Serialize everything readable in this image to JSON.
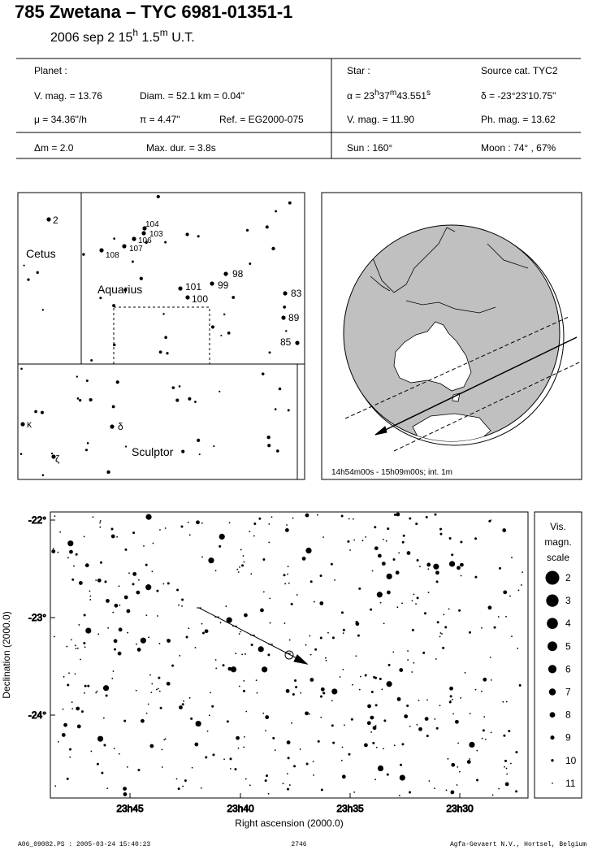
{
  "header": {
    "title": "785 Zwetana  –  TYC 6981-01351-1",
    "date": "2006 sep  2  15",
    "date_h": "h",
    "date_min": " 1.5",
    "date_m": "m",
    "date_ut": " U.T."
  },
  "planet": {
    "label": "Planet :",
    "vmag": "V. mag. = 13.76",
    "diam": "Diam. = 52.1 km = 0.04\"",
    "mu": "μ =  34.36\"/h",
    "pi": "π =  4.47\"",
    "ref": "Ref. = EG2000-075"
  },
  "star": {
    "label": "Star :",
    "source": "Source cat.  TYC2",
    "alpha": "α = 23",
    "alpha_h": "h",
    "alpha_min": "37",
    "alpha_m": "m",
    "alpha_sec": "43.551",
    "alpha_s": "s",
    "delta": "δ = -23°23'10.75\"",
    "vmag": "V. mag. = 11.90",
    "phmag": "Ph. mag. = 13.62"
  },
  "circumstances": {
    "dm": "Δm = 2.0",
    "maxdur": "Max. dur. = 3.8s",
    "sun": "Sun : 160°",
    "moon": "Moon :  74° , 67%"
  },
  "finder": {
    "constellations": [
      "Cetus",
      "Aquarius",
      "Sculptor"
    ],
    "labels": [
      "2",
      "104",
      "103",
      "106",
      "107",
      "108",
      "98",
      "101",
      "99",
      "100",
      "83",
      "89",
      "85",
      "κ",
      "δ",
      "ζ"
    ]
  },
  "globe": {
    "caption": "14h54m00s - 15h09m00s; int.  1m"
  },
  "chart": {
    "yticks": [
      "-22°",
      "-23°",
      "-24°"
    ],
    "xticks": [
      "23h45",
      "23h40",
      "23h35",
      "23h30"
    ],
    "xlabel": "Right ascension (2000.0)",
    "ylabel": "Declination (2000.0)"
  },
  "scale": {
    "title": [
      "Vis.",
      "magn.",
      "scale"
    ],
    "mags": [
      2,
      3,
      4,
      5,
      6,
      7,
      8,
      9,
      10,
      11
    ]
  },
  "footer": {
    "left": "A06_09082.PS : 2005-03-24 15:40:23",
    "center": "2746",
    "right": "Agfa-Gevaert N.V., Hortsel, Belgium"
  }
}
